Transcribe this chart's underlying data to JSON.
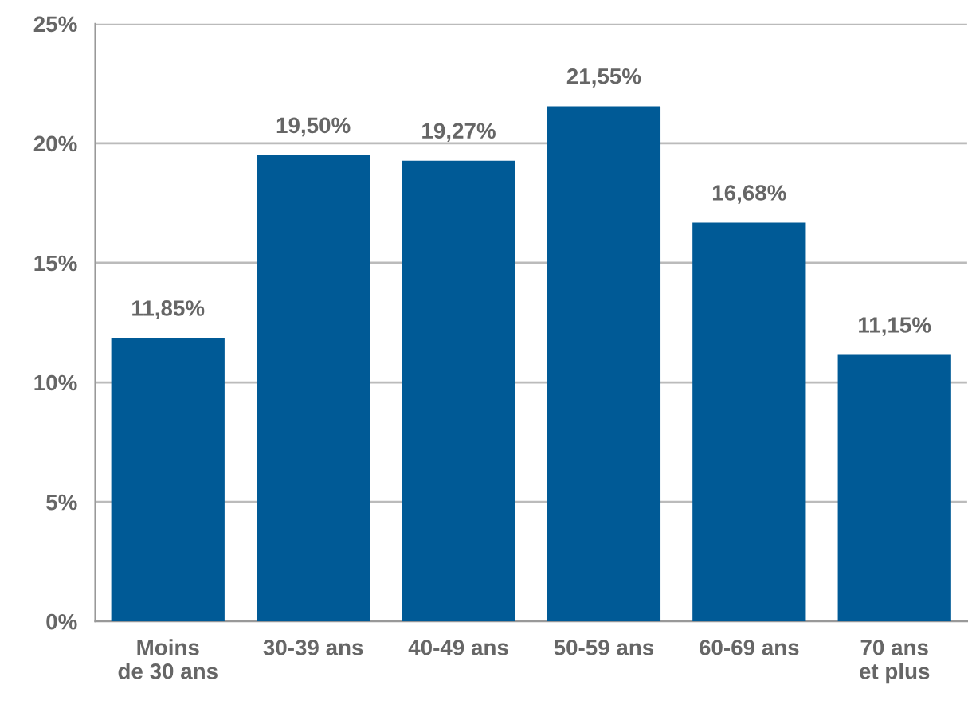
{
  "chart_data": {
    "type": "bar",
    "categories": [
      "Moins\nde 30 ans",
      "30-39 ans",
      "40-49 ans",
      "50-59 ans",
      "60-69 ans",
      "70 ans\net plus"
    ],
    "values": [
      11.85,
      19.5,
      19.27,
      21.55,
      16.68,
      11.15
    ],
    "value_labels": [
      "11,85%",
      "19,50%",
      "19,27%",
      "21,55%",
      "16,68%",
      "11,15%"
    ],
    "color": "#005a96",
    "ylim": [
      0,
      25
    ],
    "yticks": [
      {
        "value": 0,
        "label": "0%"
      },
      {
        "value": 5,
        "label": "5%"
      },
      {
        "value": 10,
        "label": "10%"
      },
      {
        "value": 15,
        "label": "15%"
      },
      {
        "value": 20,
        "label": "20%"
      },
      {
        "value": 25,
        "label": "25%"
      }
    ],
    "grid": "y"
  }
}
